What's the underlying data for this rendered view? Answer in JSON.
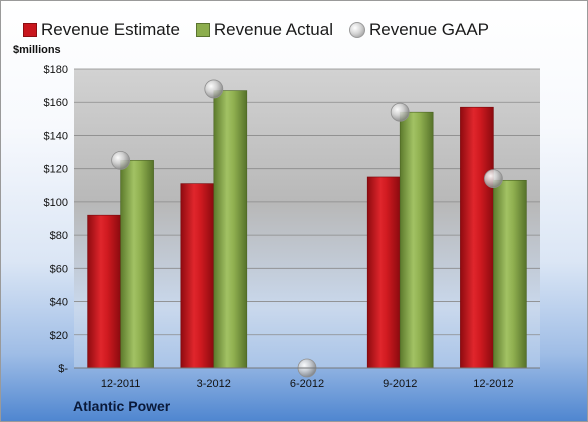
{
  "legend": {
    "estimate": "Revenue Estimate",
    "actual": "Revenue Actual",
    "gaap": "Revenue GAAP"
  },
  "footer": {
    "company": "Atlantic Power"
  },
  "chart_data": {
    "type": "bar",
    "ylabel": "$millions",
    "ylim": [
      0,
      180
    ],
    "yticks": [
      "$-",
      "$20",
      "$40",
      "$60",
      "$80",
      "$100",
      "$120",
      "$140",
      "$160",
      "$180"
    ],
    "ytick_values": [
      0,
      20,
      40,
      60,
      80,
      100,
      120,
      140,
      160,
      180
    ],
    "categories": [
      "12-2011",
      "3-2012",
      "6-2012",
      "9-2012",
      "12-2012"
    ],
    "series": [
      {
        "name": "Revenue Estimate",
        "type": "bar",
        "color": "#c8161d",
        "values": [
          92,
          111,
          null,
          115,
          157
        ]
      },
      {
        "name": "Revenue Actual",
        "type": "bar",
        "color": "#8cad4d",
        "values": [
          125,
          167,
          null,
          154,
          113
        ]
      },
      {
        "name": "Revenue GAAP",
        "type": "scatter",
        "color": "#b0b0b0",
        "values": [
          125,
          168,
          0,
          154,
          114
        ]
      }
    ],
    "grid": true,
    "legend_position": "top"
  }
}
